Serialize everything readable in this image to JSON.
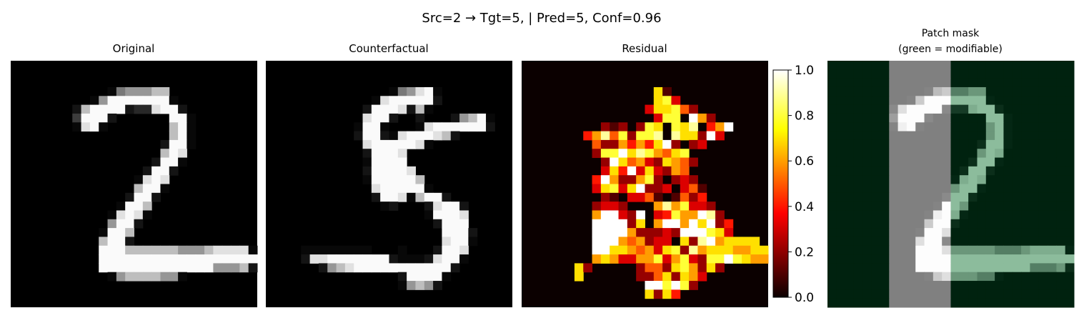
{
  "figure": {
    "suptitle": "Src=2 → Tgt=5, | Pred=5, Conf=0.96"
  },
  "panels": {
    "original": {
      "title": "Original"
    },
    "counterfactual": {
      "title": "Counterfactual"
    },
    "residual": {
      "title": "Residual"
    },
    "mask": {
      "title_line1": "Patch mask",
      "title_line2": "(green = modifiable)"
    }
  },
  "colorbar": {
    "ticks": [
      "0.0",
      "0.2",
      "0.4",
      "0.6",
      "0.8",
      "1.0"
    ],
    "range": [
      0,
      1
    ],
    "colormap": "hot"
  },
  "colors": {
    "mask_green": "#00220f",
    "mask_modifiable_overlay": "#8fbf9f",
    "mask_unmodifiable": "#808080"
  },
  "images": {
    "grid": 28,
    "mask_modifiable_columns": {
      "unmodifiable_from": 7,
      "unmodifiable_to": 13
    },
    "original_rows": [
      "............................",
      "............................",
      "............................",
      "...........aBCCCDD..........",
      ".........aCFFFFFFFa.........",
      ".......bDFFFFbccEFFb........",
      ".......dFFFb......FFa.......",
      ".......aEFa.......DFa.......",
      "..................DFa.......",
      ".................bFFa.......",
      ".................DFE........",
      "................bFFa........",
      "...............bFFb.........",
      "..............aEFE..........",
      "..............DFFa..........",
      ".............bFFb...........",
      "............aFFD............",
      "...........aEFEa............",
      "...........CFFb.............",
      "..........aFFD..............",
      "..........DFFb..............",
      "..........FFFDDDDDDCCCDEEEEa",
      "..........FFFFFFFFFFFFFFFFFF",
      "..........FFFFFFFFFFFFFCCCDb",
      "...........aCDDDDCCa........",
      "............................",
      "............................",
      "............................"
    ],
    "counterfactual_rows": [
      "............................",
      "............................",
      "............................",
      "..............aBCEFa........",
      "............aEFFFFFb........",
      "...........bFFFEbDa.........",
      "...........EFFb..b...bCDFa..",
      "..........aFFa...aEFFFFFFb..",
      "..........bFFbaEFFFEDb......",
      "...........EFFFFFEa.........",
      "...........bFFFE............",
      "...........aFFFF............",
      "...........bFFFFE...........",
      "...........aFFFFFD..........",
      "............EFFFFFa.........",
      "............bFFEaDFFb.......",
      ".............ab...bEFFb.....",
      "..................aFFFE.....",
      "...................bFFF.....",
      "....................FFFb....",
      "....................EFFa....",
      "....aaaaaaaa...a...bFFE.....",
      "....bEEFFFFFFFbaaabEFFa.....",
      "......bCDEFFFFFFFFFFFb......",
      "...............bFFFFa.......",
      "...............aCDCb........",
      "............................",
      "............................"
    ],
    "residual_rows": [
      "............................",
      "............................",
      "............................",
      "...............ga...........",
      "...............ghc..........",
      "..............cggheb........",
      "...............chh.jfb......",
      ".........bab.bhg.hgi.dfj....",
      ".......dfiehbhhi.iggbjc.....",
      "........ebbfdfdgjb.bc.......",
      "........bhhjgihfegh.........",
      ".........bjgefcbgfeb........",
      ".........cgdjcgcbfe.........",
      "........djfbbfhb.bcb........",
      "........cghcgjbbc.cea.......",
      ".........ba.ccea.aebd.......",
      "........bccb...fifhccb......",
      "........fjjcbj.cdhffjib.....",
      "........jjjjbg.fjjfjgjbd....",
      "........jjjjfbbbcbjjjhgc....",
      "........jjjfefbcc.gbijfgggg.",
      "........jjggfefcghbifgggffgg",
      "........fgfccffhcfhcbhhjhgff",
      "......gb.....beebghfbgb.....",
      "......g......bbegbgfc.......",
      "..............jjhjhb........",
      "..............gbgd..........",
      "............................"
    ]
  }
}
